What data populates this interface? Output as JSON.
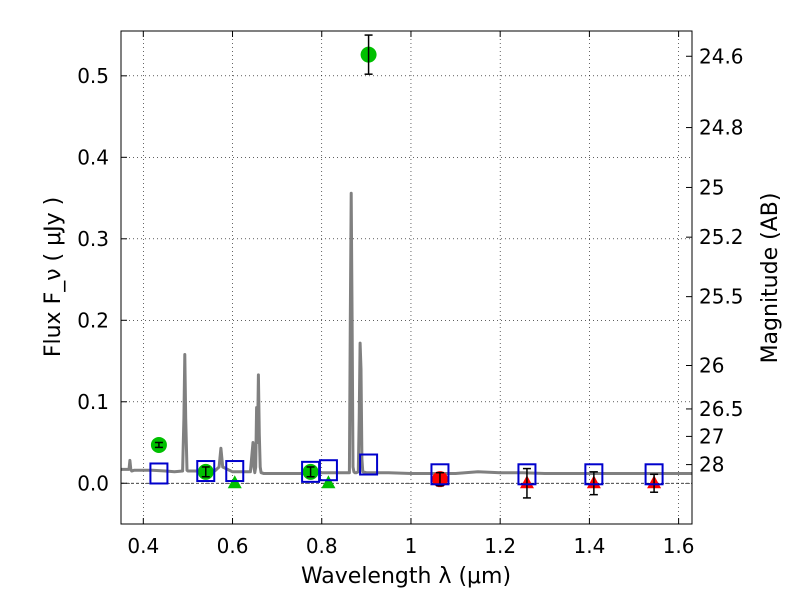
{
  "chart_data": {
    "type": "scatter",
    "title": "",
    "xlabel": "Wavelength  λ (μm)",
    "ylabel": "Flux  F_ν  ( μJy )",
    "ylabel_right": "Magnitude (AB)",
    "xlim": [
      0.35,
      1.63
    ],
    "ylim": [
      -0.05,
      0.555
    ],
    "grid": true,
    "x_ticks": [
      0.4,
      0.6,
      0.8,
      1.0,
      1.2,
      1.4,
      1.6
    ],
    "x_tick_labels": [
      "0.4",
      "0.6",
      "0.8",
      "1",
      "1.2",
      "1.4",
      "1.6"
    ],
    "y_ticks": [
      0.0,
      0.1,
      0.2,
      0.3,
      0.4,
      0.5
    ],
    "y_tick_labels": [
      "0.0",
      "0.1",
      "0.2",
      "0.3",
      "0.4",
      "0.5"
    ],
    "magnitude_ticks": [
      {
        "label": "24.6",
        "flux": 0.524
      },
      {
        "label": "24.8",
        "flux": 0.4365
      },
      {
        "label": "25",
        "flux": 0.363
      },
      {
        "label": "25.2",
        "flux": 0.302
      },
      {
        "label": "25.5",
        "flux": 0.229
      },
      {
        "label": "26",
        "flux": 0.1445
      },
      {
        "label": "26.5",
        "flux": 0.0912
      },
      {
        "label": "27",
        "flux": 0.0575
      },
      {
        "label": "28",
        "flux": 0.0229
      }
    ],
    "series": [
      {
        "name": "model spectrum",
        "style": "line",
        "color": "#808080",
        "x": [
          0.35,
          0.368,
          0.37,
          0.372,
          0.374,
          0.38,
          0.42,
          0.45,
          0.47,
          0.488,
          0.491,
          0.493,
          0.495,
          0.498,
          0.5,
          0.53,
          0.56,
          0.57,
          0.574,
          0.578,
          0.6,
          0.64,
          0.646,
          0.648,
          0.65,
          0.652,
          0.654,
          0.656,
          0.658,
          0.66,
          0.662,
          0.664,
          0.67,
          0.7,
          0.75,
          0.8,
          0.85,
          0.862,
          0.864,
          0.866,
          0.868,
          0.87,
          0.872,
          0.874,
          0.878,
          0.882,
          0.884,
          0.886,
          0.888,
          0.89,
          0.892,
          0.9,
          0.95,
          1.0,
          1.05,
          1.1,
          1.15,
          1.2,
          1.25,
          1.3,
          1.35,
          1.4,
          1.45,
          1.5,
          1.55,
          1.6,
          1.63
        ],
        "y": [
          0.017,
          0.017,
          0.028,
          0.017,
          0.015,
          0.016,
          0.016,
          0.015,
          0.014,
          0.015,
          0.08,
          0.158,
          0.08,
          0.016,
          0.015,
          0.015,
          0.015,
          0.02,
          0.043,
          0.02,
          0.014,
          0.014,
          0.05,
          0.02,
          0.013,
          0.02,
          0.093,
          0.05,
          0.133,
          0.06,
          0.02,
          0.013,
          0.012,
          0.012,
          0.012,
          0.013,
          0.013,
          0.013,
          0.2,
          0.356,
          0.2,
          0.02,
          0.014,
          0.013,
          0.013,
          0.014,
          0.08,
          0.172,
          0.14,
          0.03,
          0.014,
          0.013,
          0.013,
          0.012,
          0.012,
          0.012,
          0.014,
          0.013,
          0.013,
          0.012,
          0.012,
          0.012,
          0.012,
          0.012,
          0.012,
          0.012,
          0.012
        ]
      },
      {
        "name": "observed (green)",
        "style": "circle",
        "color": "#00c000",
        "x": [
          0.435,
          0.54,
          0.775,
          0.905
        ],
        "y": [
          0.047,
          0.014,
          0.014,
          0.526
        ],
        "err": [
          0.003,
          0.006,
          0.006,
          0.024
        ]
      },
      {
        "name": "upper limits (green)",
        "style": "triangle",
        "color": "#00c000",
        "x": [
          0.605,
          0.815
        ],
        "y": [
          0.0,
          0.0
        ]
      },
      {
        "name": "observed (red)",
        "style": "circle",
        "color": "#ff0000",
        "x": [
          1.065
        ],
        "y": [
          0.005
        ],
        "err": [
          0.008
        ]
      },
      {
        "name": "upper limits (red)",
        "style": "triangle",
        "color": "#ff0000",
        "x": [
          1.26,
          1.41,
          1.545
        ],
        "y": [
          0.0,
          0.0,
          0.0
        ],
        "err": [
          0.018,
          0.014,
          0.011
        ]
      },
      {
        "name": "model photometry",
        "style": "square",
        "color": "#0000cc",
        "x": [
          0.435,
          0.54,
          0.605,
          0.775,
          0.815,
          0.905,
          1.065,
          1.26,
          1.41,
          1.545
        ],
        "y": [
          0.012,
          0.015,
          0.015,
          0.014,
          0.016,
          0.023,
          0.011,
          0.011,
          0.011,
          0.011
        ]
      }
    ]
  }
}
